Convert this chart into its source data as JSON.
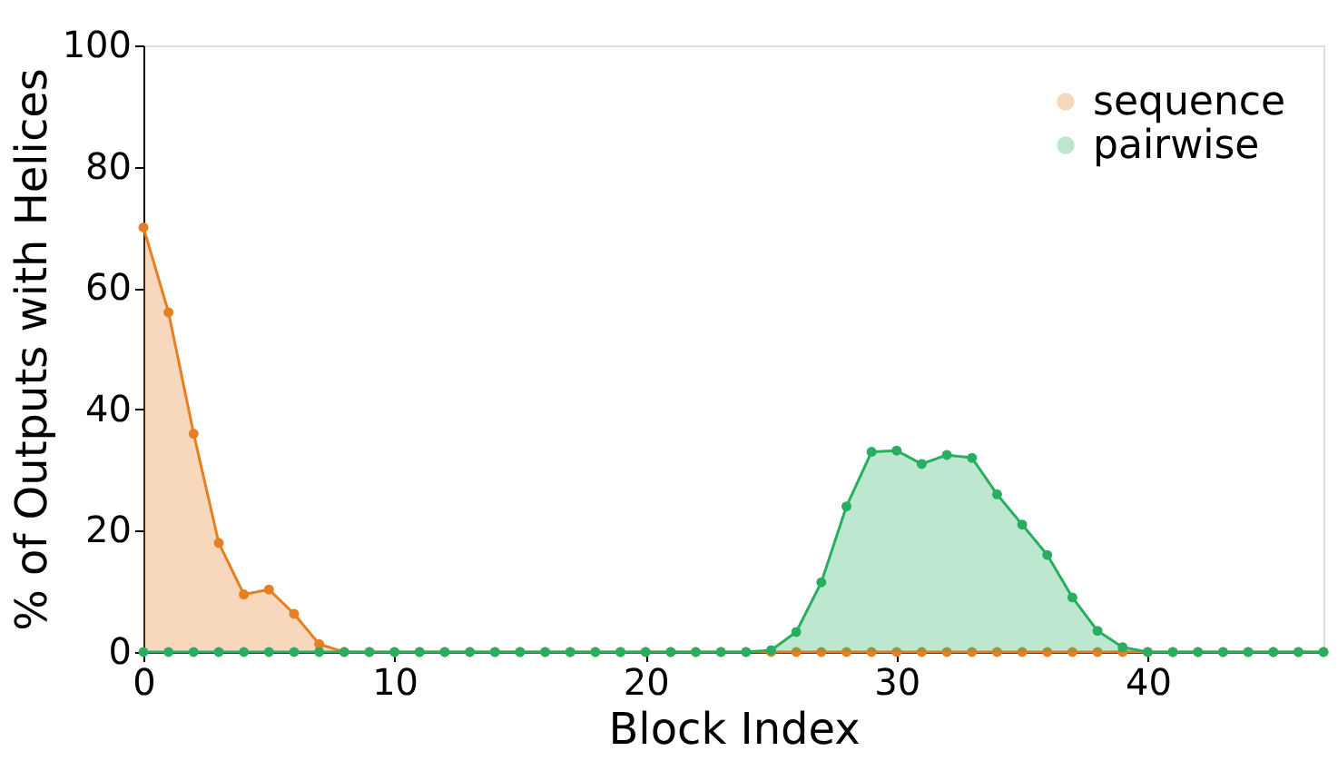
{
  "chart_data": {
    "type": "area",
    "xlabel": "Block Index",
    "ylabel": "% of Outputs with Helices",
    "x": [
      0,
      1,
      2,
      3,
      4,
      5,
      6,
      7,
      8,
      9,
      10,
      11,
      12,
      13,
      14,
      15,
      16,
      17,
      18,
      19,
      20,
      21,
      22,
      23,
      24,
      25,
      26,
      27,
      28,
      29,
      30,
      31,
      32,
      33,
      34,
      35,
      36,
      37,
      38,
      39,
      40,
      41,
      42,
      43,
      44,
      45,
      46,
      47
    ],
    "series": [
      {
        "name": "sequence",
        "color": "#e67e22",
        "values": [
          70,
          56,
          36,
          18,
          9.5,
          10.3,
          6.3,
          1.3,
          0,
          0,
          0,
          0,
          0,
          0,
          0,
          0,
          0,
          0,
          0,
          0,
          0,
          0,
          0,
          0,
          0,
          0,
          0,
          0,
          0,
          0,
          0,
          0,
          0,
          0,
          0,
          0,
          0,
          0,
          0,
          0,
          0,
          0,
          0,
          0,
          0,
          0,
          0,
          0
        ]
      },
      {
        "name": "pairwise",
        "color": "#27ae60",
        "values": [
          0,
          0,
          0,
          0,
          0,
          0,
          0,
          0,
          0,
          0,
          0,
          0,
          0,
          0,
          0,
          0,
          0,
          0,
          0,
          0,
          0,
          0,
          0,
          0,
          0,
          0.3,
          3.3,
          11.5,
          24,
          33,
          33.2,
          31,
          32.5,
          32,
          26,
          21,
          16,
          9,
          3.5,
          0.8,
          0,
          0,
          0,
          0,
          0,
          0,
          0,
          0
        ]
      }
    ],
    "xlim": [
      0,
      47
    ],
    "xticks": [
      0,
      10,
      20,
      30,
      40
    ],
    "ylim": [
      0,
      100
    ],
    "yticks": [
      0,
      20,
      40,
      60,
      80,
      100
    ],
    "grid": false,
    "legend": "top right",
    "marker": "circle",
    "line_style": "solid"
  }
}
